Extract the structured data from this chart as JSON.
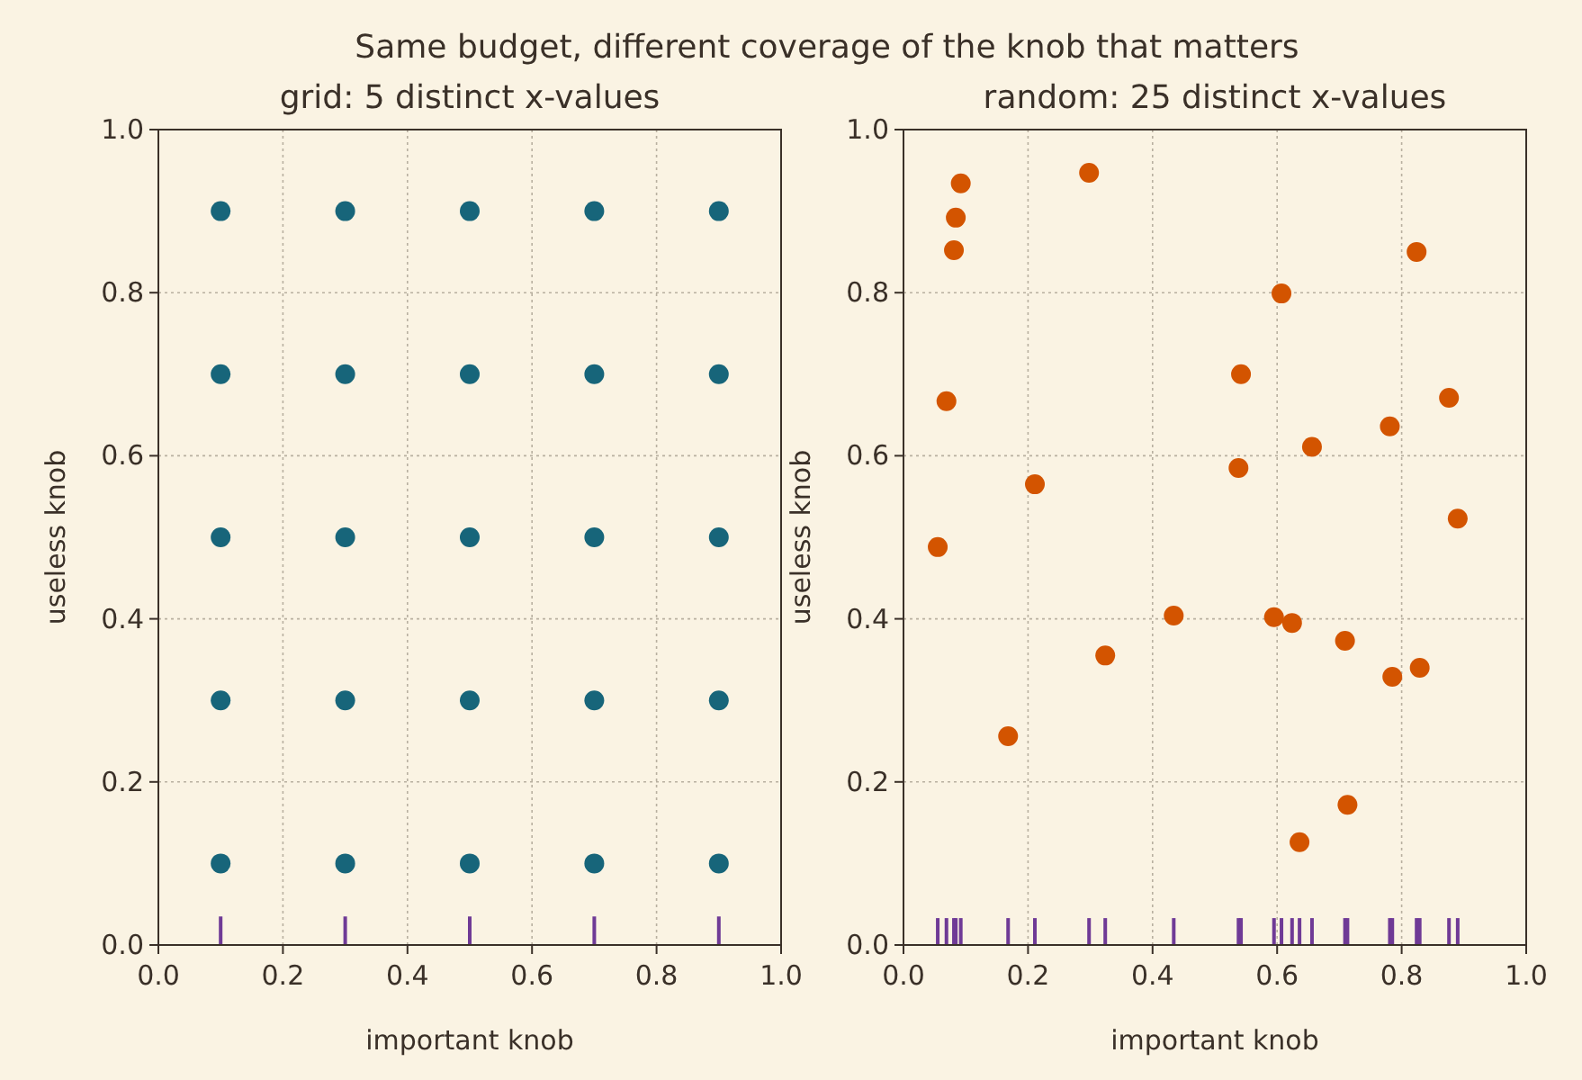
{
  "chart_data": [
    {
      "type": "scatter",
      "title": "Same budget, different coverage of the knob that matters",
      "subtitle": "grid: 5 distinct x-values",
      "xlabel": "important knob",
      "ylabel": "useless knob",
      "xlim": [
        0,
        1
      ],
      "ylim": [
        0,
        1
      ],
      "xticks": [
        {
          "value": 0,
          "label": "0.0"
        },
        {
          "value": 0.2,
          "label": "0.2"
        },
        {
          "value": 0.4,
          "label": "0.4"
        },
        {
          "value": 0.6,
          "label": "0.6"
        },
        {
          "value": 0.8,
          "label": "0.8"
        },
        {
          "value": 1,
          "label": "1.0"
        }
      ],
      "yticks": [
        {
          "value": 0,
          "label": "0.0"
        },
        {
          "value": 0.2,
          "label": "0.2"
        },
        {
          "value": 0.4,
          "label": "0.4"
        },
        {
          "value": 0.6,
          "label": "0.6"
        },
        {
          "value": 0.8,
          "label": "0.8"
        },
        {
          "value": 1,
          "label": "1.0"
        }
      ],
      "grid": true,
      "marker": "circle",
      "series": [
        {
          "color": "#17657a",
          "x": [
            0.1,
            0.1,
            0.1,
            0.1,
            0.1,
            0.3,
            0.3,
            0.3,
            0.3,
            0.3,
            0.5,
            0.5,
            0.5,
            0.5,
            0.5,
            0.7,
            0.7,
            0.7,
            0.7,
            0.7,
            0.9,
            0.9,
            0.9,
            0.9,
            0.9
          ],
          "values": [
            0.1,
            0.3,
            0.5,
            0.7,
            0.9,
            0.1,
            0.3,
            0.5,
            0.7,
            0.9,
            0.1,
            0.3,
            0.5,
            0.7,
            0.9,
            0.1,
            0.3,
            0.5,
            0.7,
            0.9,
            0.1,
            0.3,
            0.5,
            0.7,
            0.9
          ]
        },
        {
          "type": "bar",
          "color": "#6f3a96",
          "x": [
            0.1,
            0.3,
            0.5,
            0.7,
            0.9
          ],
          "values": [
            0.035,
            0.035,
            0.035,
            0.035,
            0.035
          ]
        }
      ]
    },
    {
      "type": "scatter",
      "title": "random: 25 distinct x-values",
      "xlabel": "important knob",
      "ylabel": "useless knob",
      "xlim": [
        0,
        1
      ],
      "ylim": [
        0,
        1
      ],
      "xticks": [
        {
          "value": 0,
          "label": "0.0"
        },
        {
          "value": 0.2,
          "label": "0.2"
        },
        {
          "value": 0.4,
          "label": "0.4"
        },
        {
          "value": 0.6,
          "label": "0.6"
        },
        {
          "value": 0.8,
          "label": "0.8"
        },
        {
          "value": 1,
          "label": "1.0"
        }
      ],
      "yticks": [
        {
          "value": 0,
          "label": "0.0"
        },
        {
          "value": 0.2,
          "label": "0.2"
        },
        {
          "value": 0.4,
          "label": "0.4"
        },
        {
          "value": 0.6,
          "label": "0.6"
        },
        {
          "value": 0.8,
          "label": "0.8"
        },
        {
          "value": 1,
          "label": "1.0"
        }
      ],
      "grid": true,
      "marker": "circle",
      "series": [
        {
          "color": "#d35400",
          "x": [
            0.055,
            0.069,
            0.081,
            0.084,
            0.092,
            0.168,
            0.211,
            0.298,
            0.324,
            0.434,
            0.538,
            0.542,
            0.595,
            0.607,
            0.624,
            0.636,
            0.656,
            0.709,
            0.713,
            0.781,
            0.785,
            0.824,
            0.829,
            0.876,
            0.89
          ],
          "values": [
            0.488,
            0.667,
            0.852,
            0.892,
            0.934,
            0.256,
            0.565,
            0.947,
            0.355,
            0.404,
            0.585,
            0.7,
            0.402,
            0.799,
            0.395,
            0.126,
            0.611,
            0.373,
            0.172,
            0.636,
            0.329,
            0.85,
            0.34,
            0.671,
            0.523
          ]
        },
        {
          "type": "bar",
          "color": "#6f3a96",
          "x": [
            0.055,
            0.069,
            0.081,
            0.084,
            0.092,
            0.168,
            0.211,
            0.298,
            0.324,
            0.434,
            0.538,
            0.542,
            0.595,
            0.607,
            0.624,
            0.636,
            0.656,
            0.709,
            0.713,
            0.781,
            0.785,
            0.824,
            0.829,
            0.876,
            0.89
          ],
          "values": [
            0.033,
            0.033,
            0.033,
            0.033,
            0.033,
            0.033,
            0.033,
            0.033,
            0.033,
            0.033,
            0.033,
            0.033,
            0.033,
            0.033,
            0.033,
            0.033,
            0.033,
            0.033,
            0.033,
            0.033,
            0.033,
            0.033,
            0.033,
            0.033,
            0.033
          ]
        }
      ]
    }
  ]
}
